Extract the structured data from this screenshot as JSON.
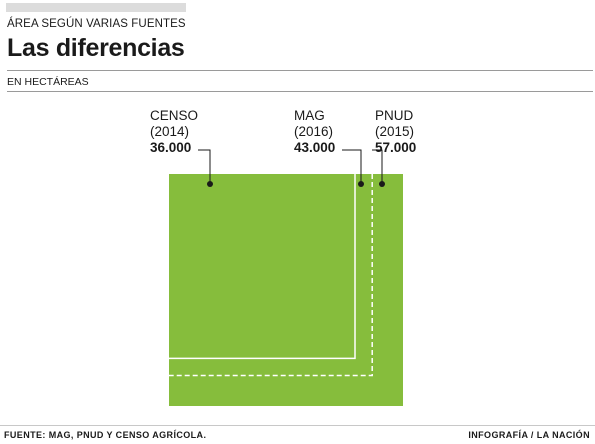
{
  "header": {
    "kicker": "ÁREA SEGÚN VARIAS FUENTES",
    "title": "Las diferencias",
    "units": "EN HECTÁREAS"
  },
  "footer": {
    "source": "FUENTE: MAG, PNUD Y CENSO AGRÍCOLA.",
    "credit": "INFOGRAFÍA  / LA NACIÓN"
  },
  "colors": {
    "fill": "#86bd3c",
    "outline": "#ffffff",
    "leader": "#1a1a1a"
  },
  "chart_data": {
    "type": "area-square",
    "unit": "hectáreas",
    "series": [
      {
        "name": "CENSO",
        "year": "(2014)",
        "value_label": "36.000",
        "value": 36000,
        "style": "solid"
      },
      {
        "name": "MAG",
        "year": "(2016)",
        "value_label": "43.000",
        "value": 43000,
        "style": "dashed"
      },
      {
        "name": "PNUD",
        "year": "(2015)",
        "value_label": "57.000",
        "value": 57000,
        "style": "filled"
      }
    ]
  }
}
